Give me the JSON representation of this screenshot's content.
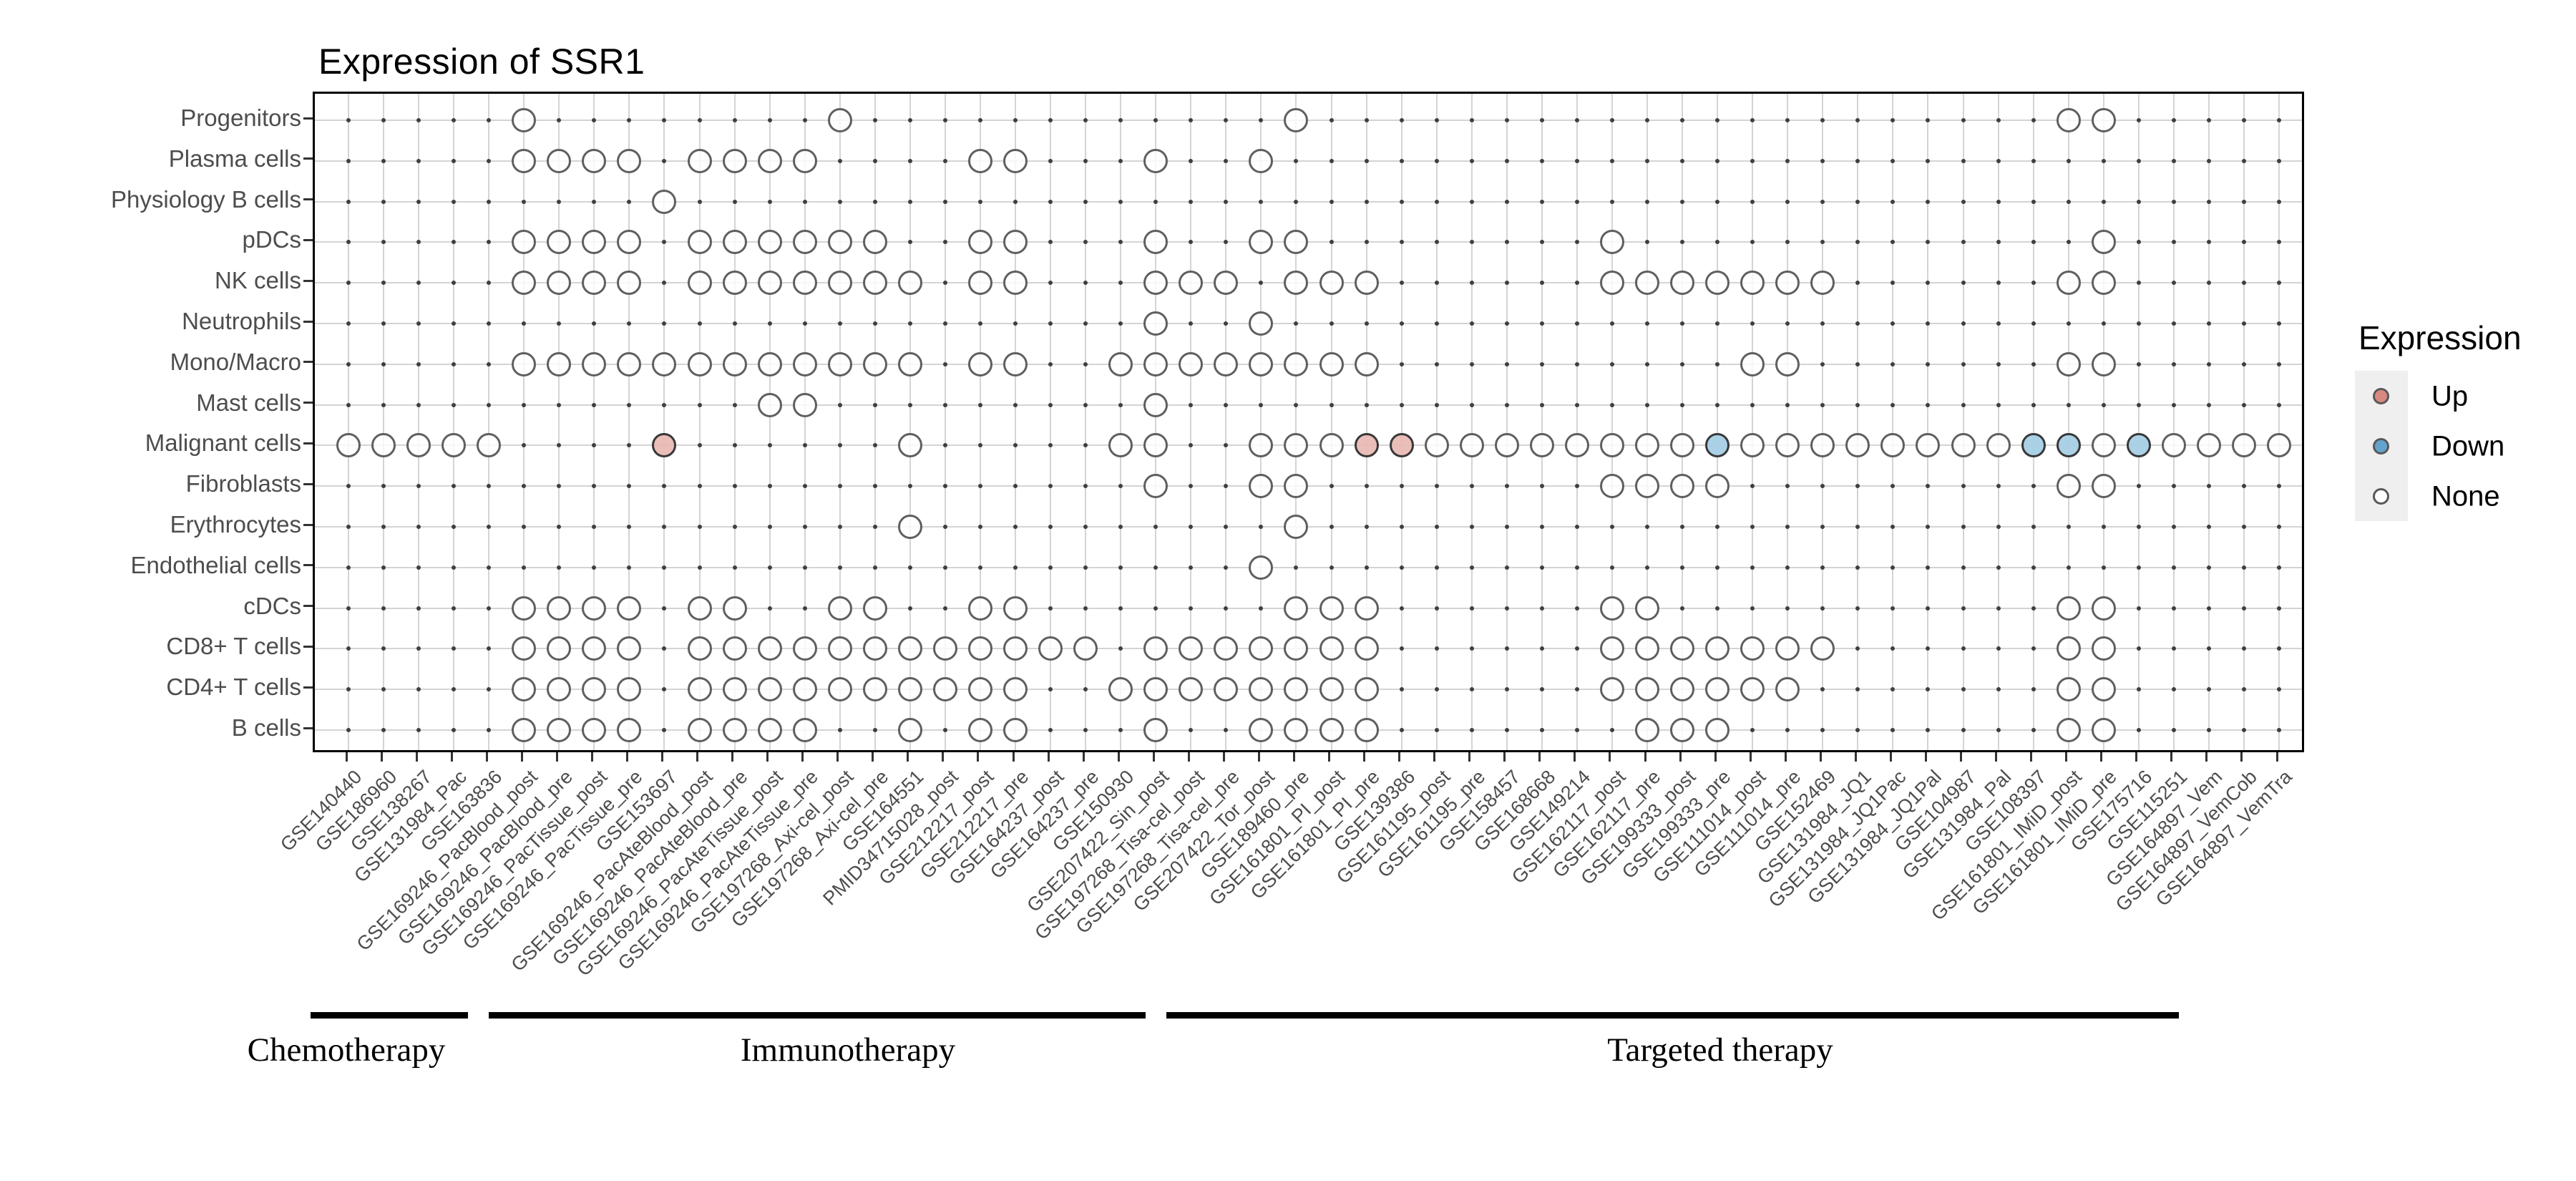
{
  "chart_data": {
    "type": "heatmap",
    "subtype": "dot-matrix-expression-plot",
    "title": "Expression of SSR1",
    "legend": {
      "title": "Expression",
      "position": "right",
      "items": [
        {
          "label": "Up",
          "value": "up",
          "color": "#d8897f"
        },
        {
          "label": "Down",
          "value": "down",
          "color": "#63a4ce"
        },
        {
          "label": "None",
          "value": "none",
          "color": "#ffffff"
        }
      ]
    },
    "ylabel": "",
    "xlabel": "",
    "grid": "on",
    "rows": [
      "Progenitors",
      "Plasma cells",
      "Physiology B cells",
      "pDCs",
      "NK cells",
      "Neutrophils",
      "Mono/Macro",
      "Mast cells",
      "Malignant cells",
      "Fibroblasts",
      "Erythrocytes",
      "Endothelial cells",
      "cDCs",
      "CD8+ T cells",
      "CD4+ T cells",
      "B cells"
    ],
    "columns": [
      "GSE140440",
      "GSE186960",
      "GSE138267",
      "GSE131984_Pac",
      "GSE163836",
      "GSE169246_PacBlood_post",
      "GSE169246_PacBlood_pre",
      "GSE169246_PacTissue_post",
      "GSE169246_PacTissue_pre",
      "GSE153697",
      "GSE169246_PacAteBlood_post",
      "GSE169246_PacAteBlood_pre",
      "GSE169246_PacAteTissue_post",
      "GSE169246_PacAteTissue_pre",
      "GSE197268_Axi-cel_post",
      "GSE197268_Axi-cel_pre",
      "GSE164551",
      "PMID34715028_post",
      "GSE212217_post",
      "GSE212217_pre",
      "GSE164237_post",
      "GSE164237_pre",
      "GSE150930",
      "GSE207422_Sin_post",
      "GSE197268_Tisa-cel_post",
      "GSE197268_Tisa-cel_pre",
      "GSE207422_Tor_post",
      "GSE189460_pre",
      "GSE161801_PI_post",
      "GSE161801_PI_pre",
      "GSE139386",
      "GSE161195_post",
      "GSE161195_pre",
      "GSE158457",
      "GSE168668",
      "GSE149214",
      "GSE162117_post",
      "GSE162117_pre",
      "GSE199333_post",
      "GSE199333_pre",
      "GSE111014_post",
      "GSE111014_pre",
      "GSE152469",
      "GSE131984_JQ1",
      "GSE131984_JQ1Pac",
      "GSE131984_JQ1Pal",
      "GSE104987",
      "GSE131984_Pal",
      "GSE108397",
      "GSE161801_IMiD_post",
      "GSE161801_IMiD_pre",
      "GSE175716",
      "GSE115251",
      "GSE164897_Vem",
      "GSE164897_VemCob",
      "GSE164897_VemTra"
    ],
    "groups": [
      {
        "label": "Chemotherapy",
        "first_col": 1,
        "last_col": 4,
        "underline_x": [
          434,
          654
        ],
        "label_x": 484
      },
      {
        "label": "Immunotherapy",
        "first_col": 5,
        "last_col": 24,
        "underline_x": [
          683,
          1601
        ],
        "label_x": 1185
      },
      {
        "label": "Targeted therapy",
        "first_col": 25,
        "last_col": 53,
        "underline_x": [
          1630,
          3045
        ],
        "label_x": 2404
      }
    ],
    "cells": {
      "Progenitors": {
        "none": [
          6,
          15,
          28,
          50,
          51
        ],
        "up": [],
        "down": []
      },
      "Plasma cells": {
        "none": [
          6,
          7,
          8,
          9,
          11,
          12,
          13,
          14,
          19,
          20,
          24,
          27
        ],
        "up": [],
        "down": []
      },
      "Physiology B cells": {
        "none": [
          10
        ],
        "up": [],
        "down": []
      },
      "pDCs": {
        "none": [
          6,
          7,
          8,
          9,
          11,
          12,
          13,
          14,
          15,
          16,
          19,
          20,
          24,
          27,
          28,
          37,
          51
        ],
        "up": [],
        "down": []
      },
      "NK cells": {
        "none": [
          6,
          7,
          8,
          9,
          11,
          12,
          13,
          14,
          15,
          16,
          17,
          19,
          20,
          24,
          25,
          26,
          28,
          29,
          30,
          37,
          38,
          39,
          40,
          41,
          42,
          43,
          50,
          51
        ],
        "up": [],
        "down": []
      },
      "Neutrophils": {
        "none": [
          24,
          27
        ],
        "up": [],
        "down": []
      },
      "Mono/Macro": {
        "none": [
          6,
          7,
          8,
          9,
          10,
          11,
          12,
          13,
          14,
          15,
          16,
          17,
          19,
          20,
          23,
          24,
          25,
          26,
          27,
          28,
          29,
          30,
          41,
          42,
          50,
          51
        ],
        "up": [],
        "down": []
      },
      "Mast cells": {
        "none": [
          13,
          14,
          24
        ],
        "up": [],
        "down": []
      },
      "Malignant cells": {
        "none": [
          1,
          2,
          3,
          4,
          5,
          17,
          23,
          24,
          27,
          28,
          29,
          32,
          33,
          34,
          35,
          36,
          37,
          38,
          39,
          41,
          42,
          43,
          44,
          45,
          46,
          47,
          48,
          51,
          53,
          54,
          55,
          56
        ],
        "up": [
          10,
          30,
          31
        ],
        "down": [
          40,
          49,
          50,
          52
        ]
      },
      "Fibroblasts": {
        "none": [
          24,
          27,
          28,
          37,
          38,
          39,
          40,
          50,
          51
        ],
        "up": [],
        "down": []
      },
      "Erythrocytes": {
        "none": [
          17,
          28
        ],
        "up": [],
        "down": []
      },
      "Endothelial cells": {
        "none": [
          27
        ],
        "up": [],
        "down": []
      },
      "cDCs": {
        "none": [
          6,
          7,
          8,
          9,
          11,
          12,
          15,
          16,
          19,
          20,
          28,
          29,
          30,
          37,
          38,
          50,
          51
        ],
        "up": [],
        "down": []
      },
      "CD8+ T cells": {
        "none": [
          6,
          7,
          8,
          9,
          11,
          12,
          13,
          14,
          15,
          16,
          17,
          18,
          19,
          20,
          21,
          22,
          24,
          25,
          26,
          27,
          28,
          29,
          30,
          37,
          38,
          39,
          40,
          41,
          42,
          43,
          50,
          51
        ],
        "up": [],
        "down": []
      },
      "CD4+ T cells": {
        "none": [
          6,
          7,
          8,
          9,
          11,
          12,
          13,
          14,
          15,
          16,
          17,
          18,
          19,
          20,
          23,
          24,
          25,
          26,
          27,
          28,
          29,
          30,
          37,
          38,
          39,
          40,
          41,
          42,
          50,
          51
        ],
        "up": [],
        "down": []
      },
      "B cells": {
        "none": [
          6,
          7,
          8,
          9,
          11,
          12,
          13,
          14,
          17,
          19,
          20,
          24,
          27,
          28,
          29,
          30,
          38,
          39,
          40,
          50,
          51
        ],
        "up": [],
        "down": []
      }
    },
    "colors": {
      "up_fill": "#e8b9b3",
      "down_fill": "#a7cfe6",
      "none_fill": "#ffffff",
      "outline_none": "#5f5f5f",
      "outline_colored": "#383838",
      "gridline": "#d4d4d4",
      "grid_dot": "#3f3f3f",
      "axis": "#000000",
      "axis_text": "#4d4d4d"
    }
  }
}
